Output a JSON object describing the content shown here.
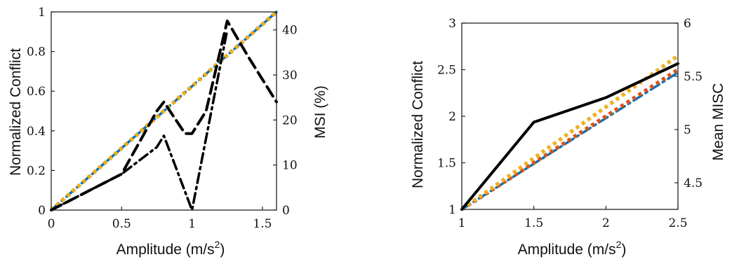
{
  "chart_data": [
    {
      "type": "line",
      "xlabel": "Amplitude (m/s",
      "xlabel_sup": "2",
      "xlabel_close": ")",
      "ylabel_left": "Normalized Conflict",
      "ylabel_right": "MSI (%)",
      "xlim": [
        0,
        1.6
      ],
      "ylim_left": [
        0,
        1
      ],
      "ylim_right": [
        0,
        44
      ],
      "xticks": [
        "0",
        "0.5",
        "1",
        "1.5"
      ],
      "xtick_values": [
        0,
        0.5,
        1,
        1.5
      ],
      "yticks_left": [
        "0",
        "0.2",
        "0.4",
        "0.6",
        "0.8",
        "1"
      ],
      "ytick_left_values": [
        0,
        0.2,
        0.4,
        0.6,
        0.8,
        1
      ],
      "yticks_right": [
        "0",
        "10",
        "20",
        "30",
        "40"
      ],
      "ytick_right_values": [
        0,
        10,
        20,
        30,
        40
      ],
      "series": [
        {
          "axis": "left",
          "color": "#0072BD",
          "style": "dashdot",
          "x": [
            0,
            1.6
          ],
          "y": [
            0,
            1
          ]
        },
        {
          "axis": "left",
          "color": "#D95319",
          "style": "dotted",
          "x": [
            0,
            1.6
          ],
          "y": [
            0,
            1
          ]
        },
        {
          "axis": "left",
          "color": "#EDB120",
          "style": "dotted",
          "x": [
            0,
            1.6
          ],
          "y": [
            0,
            1
          ]
        },
        {
          "axis": "right",
          "color": "#000000",
          "style": "dashed",
          "x": [
            0,
            0.5,
            0.75,
            0.8,
            0.95,
            1.0,
            1.1,
            1.25,
            1.4,
            1.6
          ],
          "y": [
            0,
            8,
            22,
            24,
            17,
            17,
            22,
            42,
            34,
            24
          ]
        },
        {
          "axis": "right",
          "color": "#000000",
          "style": "dashdot",
          "x": [
            0,
            0.5,
            0.75,
            0.8,
            1.0,
            1.25
          ],
          "y": [
            0,
            8,
            14,
            16.5,
            0,
            40
          ]
        }
      ]
    },
    {
      "type": "line",
      "xlabel": "Amplitude (m/s",
      "xlabel_sup": "2",
      "xlabel_close": ")",
      "ylabel_left": "Normalized Conflict",
      "ylabel_right": "Mean MISC",
      "xlim": [
        1,
        2.5
      ],
      "ylim_left": [
        1,
        3
      ],
      "ylim_right": [
        4.25,
        6
      ],
      "xticks": [
        "1",
        "1.5",
        "2",
        "2.5"
      ],
      "xtick_values": [
        1,
        1.5,
        2,
        2.5
      ],
      "yticks_left": [
        "1",
        "1.5",
        "2",
        "2.5",
        "3"
      ],
      "ytick_left_values": [
        1,
        1.5,
        2,
        2.5,
        3
      ],
      "yticks_right": [
        "4.5",
        "5",
        "5.5",
        "6"
      ],
      "ytick_right_values": [
        4.5,
        5,
        5.5,
        6
      ],
      "series": [
        {
          "axis": "left",
          "color": "#0072BD",
          "style": "dashdot",
          "x": [
            1,
            2.5
          ],
          "y": [
            1,
            2.47
          ]
        },
        {
          "axis": "left",
          "color": "#D95319",
          "style": "dotted",
          "x": [
            1,
            2.5
          ],
          "y": [
            1,
            2.5
          ]
        },
        {
          "axis": "left",
          "color": "#EDB120",
          "style": "dotted",
          "x": [
            1,
            2.5
          ],
          "y": [
            1,
            2.65
          ]
        },
        {
          "axis": "right",
          "color": "#000000",
          "style": "solid",
          "x": [
            1,
            1.5,
            2,
            2.5
          ],
          "y": [
            4.25,
            5.07,
            5.3,
            5.62
          ]
        }
      ]
    }
  ]
}
